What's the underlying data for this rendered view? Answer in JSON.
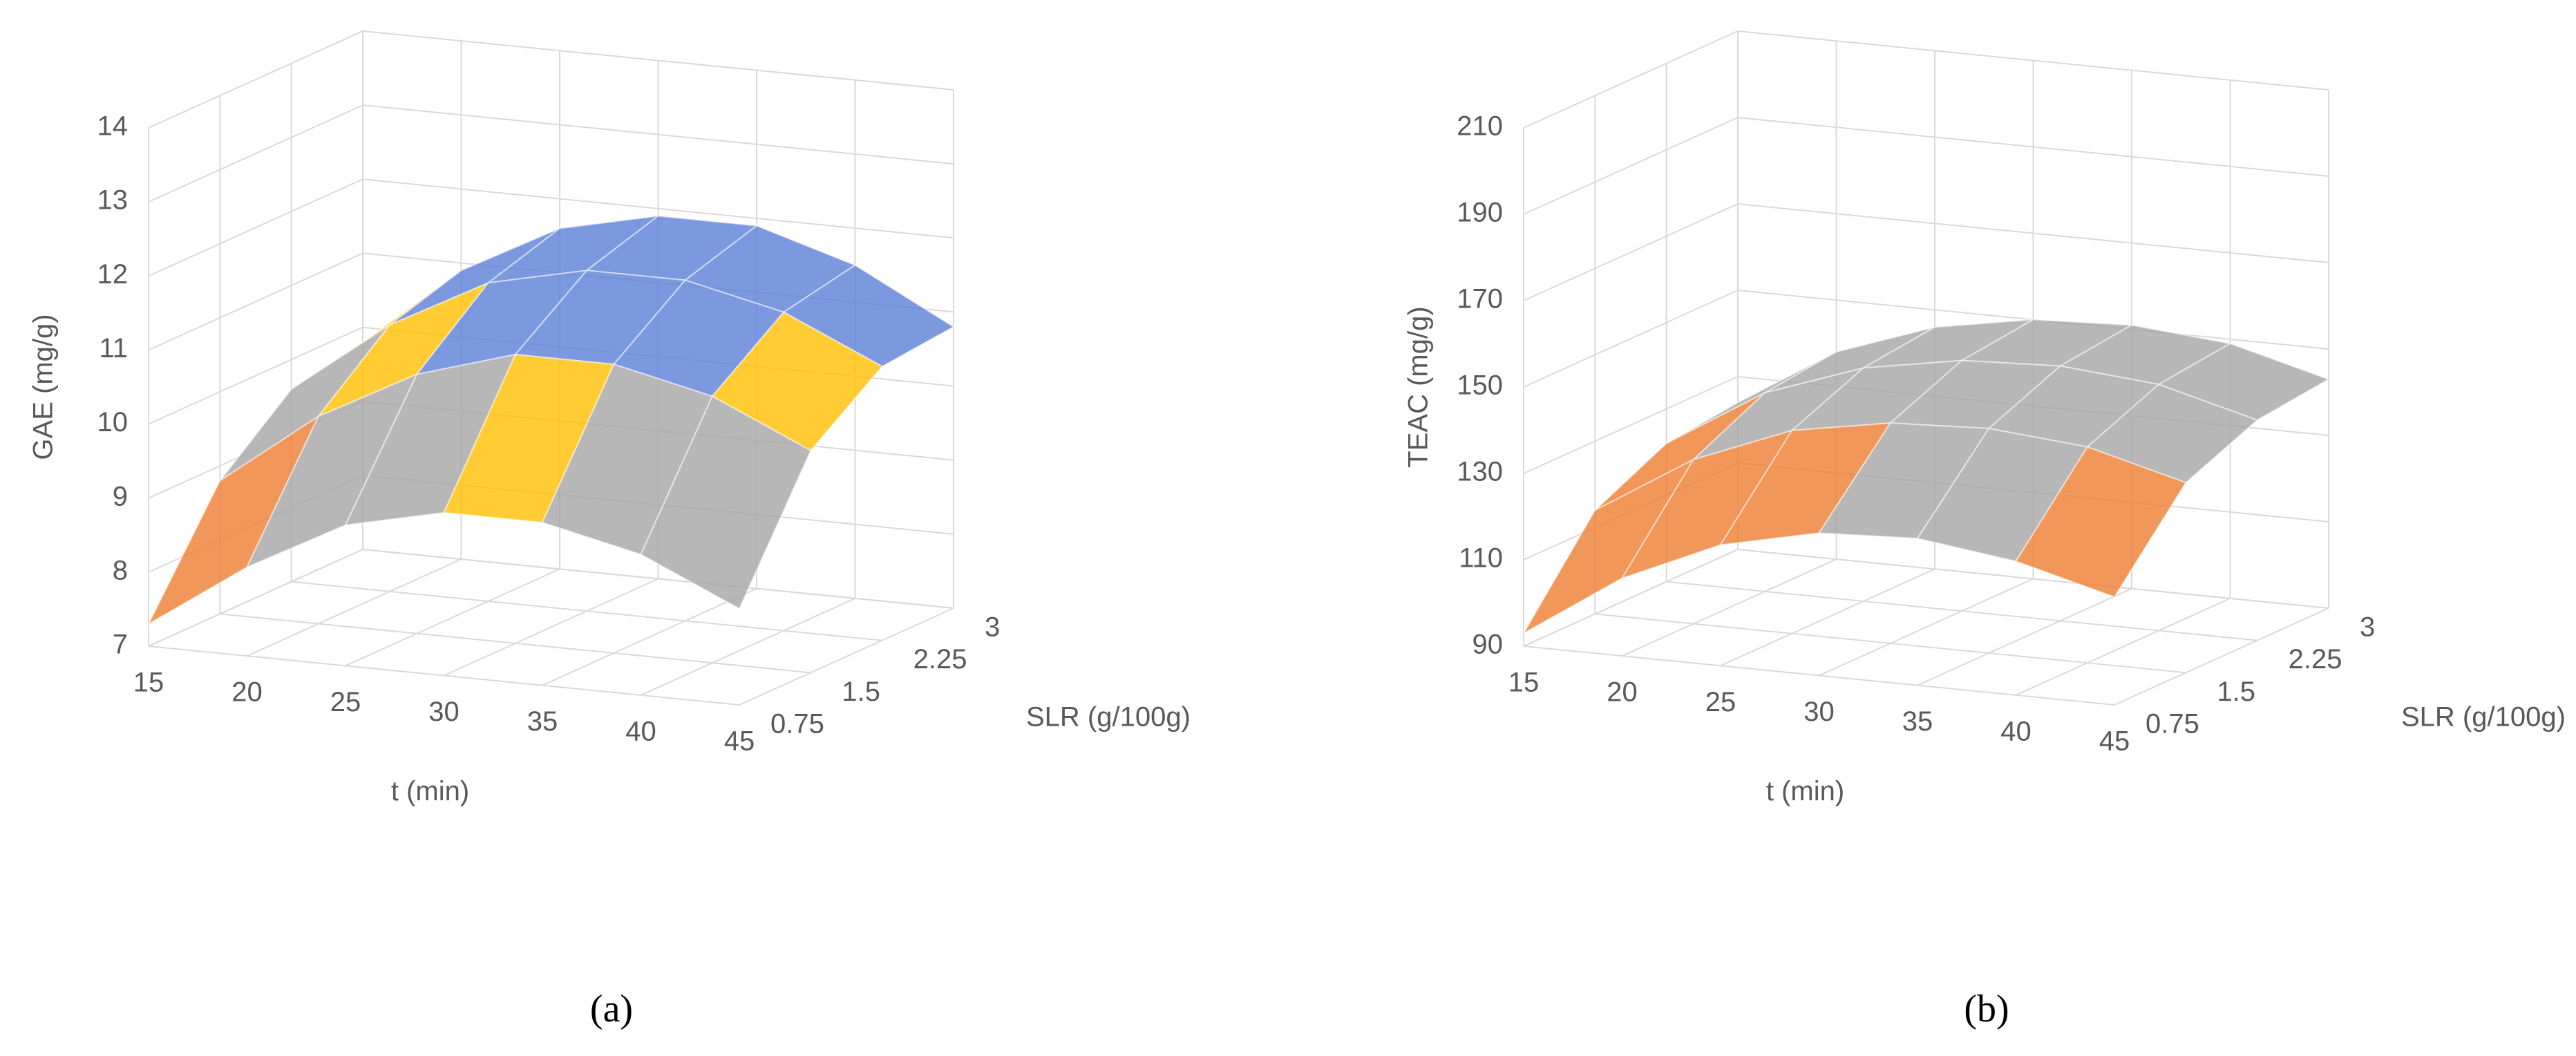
{
  "chart_data": [
    {
      "type": "surface",
      "caption": "(a)",
      "xlabel": "t (min)",
      "ylabel": "SLR (g/100g)",
      "zlabel": "GAE (mg/g)",
      "x": [
        15,
        20,
        25,
        30,
        35,
        40,
        45
      ],
      "y": [
        0.75,
        1.5,
        2.25,
        3
      ],
      "values": [
        [
          7.3,
          8.2,
          8.9,
          9.2,
          9.2,
          8.9,
          8.3
        ],
        [
          8.8,
          9.8,
          10.5,
          10.9,
          10.9,
          10.6,
          10.0
        ],
        [
          9.6,
          10.6,
          11.3,
          11.6,
          11.6,
          11.3,
          10.7
        ],
        [
          9.8,
          10.9,
          11.6,
          11.9,
          11.9,
          11.5,
          10.8
        ]
      ],
      "zlim": [
        7,
        14
      ],
      "zticks": [
        7,
        8,
        9,
        10,
        11,
        12,
        13,
        14
      ],
      "grid": true,
      "band_colors": [
        "#4472c4",
        "#ed7d31",
        "#a5a5a5",
        "#ffc000",
        "#5b7fd8",
        "#70ad47",
        "#264478"
      ]
    },
    {
      "type": "surface",
      "caption": "(b)",
      "xlabel": "t (min)",
      "ylabel": "SLR (g/100g)",
      "zlabel": "TEAC (mg/g)",
      "x": [
        15,
        20,
        25,
        30,
        35,
        40,
        45
      ],
      "y": [
        0.75,
        1.5,
        2.25,
        3
      ],
      "values": [
        [
          93,
          108,
          118,
          123,
          124,
          121,
          115
        ],
        [
          114,
          128,
          137,
          141,
          142,
          140,
          134
        ],
        [
          122,
          136,
          144,
          148,
          149,
          147,
          141
        ],
        [
          124,
          138,
          146,
          150,
          151,
          149,
          143
        ]
      ],
      "zlim": [
        90,
        210
      ],
      "zticks": [
        90,
        110,
        130,
        150,
        170,
        190,
        210
      ],
      "grid": true,
      "band_colors": [
        "#4472c4",
        "#ed7d31",
        "#a5a5a5",
        "#ffc000",
        "#5b9bd5",
        "#70ad47"
      ]
    }
  ]
}
